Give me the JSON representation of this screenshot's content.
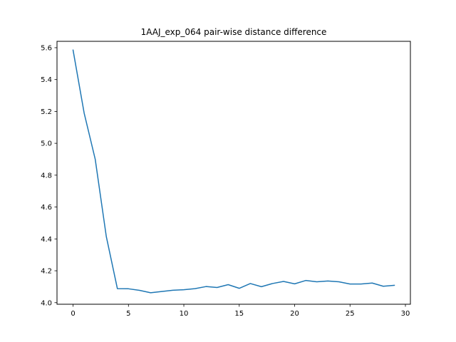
{
  "chart_data": {
    "type": "line",
    "title": "1AAJ_exp_064 pair-wise distance difference",
    "xlabel": "",
    "ylabel": "",
    "xlim": [
      -1.45,
      30.45
    ],
    "ylim": [
      3.99,
      5.64
    ],
    "xticks": [
      0,
      5,
      10,
      15,
      20,
      25,
      30
    ],
    "yticks": [
      4.0,
      4.2,
      4.4,
      4.6,
      4.8,
      5.0,
      5.2,
      5.4,
      5.6
    ],
    "grid": false,
    "legend": "none",
    "series": [
      {
        "color": "#1f77b4",
        "x": [
          0,
          1,
          2,
          3,
          4,
          5,
          6,
          7,
          8,
          9,
          10,
          11,
          12,
          13,
          14,
          15,
          16,
          17,
          18,
          19,
          20,
          21,
          22,
          23,
          24,
          25,
          26,
          27,
          28,
          29
        ],
        "y": [
          5.585,
          5.19,
          4.9,
          4.415,
          4.088,
          4.087,
          4.077,
          4.062,
          4.07,
          4.078,
          4.081,
          4.088,
          4.101,
          4.095,
          4.113,
          4.09,
          4.12,
          4.1,
          4.12,
          4.133,
          4.118,
          4.139,
          4.131,
          4.136,
          4.131,
          4.117,
          4.117,
          4.123,
          4.103,
          4.109
        ]
      }
    ]
  }
}
